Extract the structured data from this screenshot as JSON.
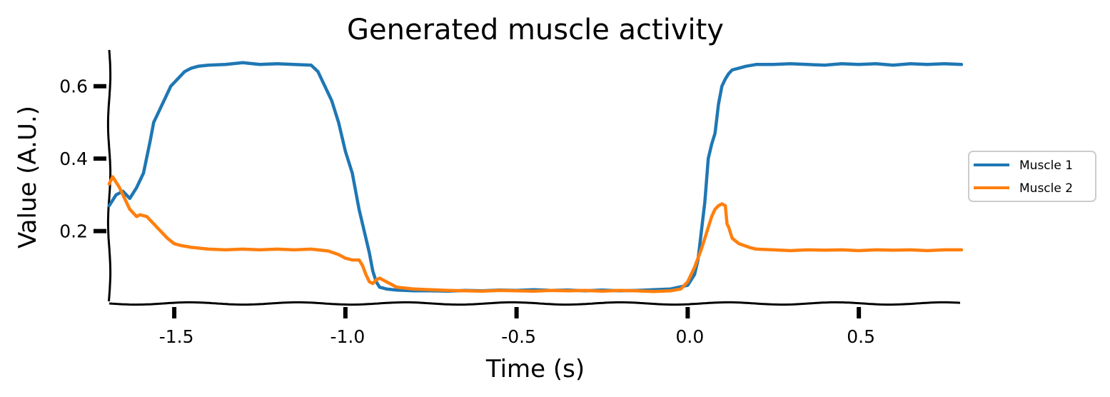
{
  "chart_data": {
    "type": "line",
    "title": "Generated muscle activity",
    "xlabel": "Time (s)",
    "ylabel": "Value (A.U.)",
    "xlim": [
      -1.69,
      0.8
    ],
    "ylim": [
      0.0,
      0.7
    ],
    "xticks": [
      {
        "value": -1.5,
        "label": "-1.5"
      },
      {
        "value": -1.0,
        "label": "-1.0"
      },
      {
        "value": -0.5,
        "label": "-0.5"
      },
      {
        "value": 0.0,
        "label": "0.0"
      },
      {
        "value": 0.5,
        "label": "0.5"
      }
    ],
    "yticks": [
      {
        "value": 0.2,
        "label": "0.2"
      },
      {
        "value": 0.4,
        "label": "0.4"
      },
      {
        "value": 0.6,
        "label": "0.6"
      }
    ],
    "grid": false,
    "legend_position": "right",
    "series": [
      {
        "name": "Muscle 1",
        "color": "#1f77b4",
        "x": [
          -1.69,
          -1.67,
          -1.65,
          -1.63,
          -1.61,
          -1.59,
          -1.57,
          -1.56,
          -1.55,
          -1.53,
          -1.51,
          -1.49,
          -1.47,
          -1.45,
          -1.43,
          -1.4,
          -1.35,
          -1.3,
          -1.25,
          -1.2,
          -1.15,
          -1.1,
          -1.08,
          -1.06,
          -1.04,
          -1.02,
          -1.0,
          -0.98,
          -0.96,
          -0.94,
          -0.93,
          -0.92,
          -0.91,
          -0.9,
          -0.88,
          -0.85,
          -0.8,
          -0.75,
          -0.7,
          -0.65,
          -0.6,
          -0.55,
          -0.5,
          -0.45,
          -0.4,
          -0.35,
          -0.3,
          -0.25,
          -0.2,
          -0.15,
          -0.1,
          -0.05,
          0.0,
          0.02,
          0.03,
          0.04,
          0.05,
          0.06,
          0.07,
          0.08,
          0.09,
          0.1,
          0.11,
          0.12,
          0.13,
          0.15,
          0.17,
          0.2,
          0.25,
          0.3,
          0.35,
          0.4,
          0.45,
          0.5,
          0.55,
          0.6,
          0.65,
          0.7,
          0.75,
          0.8
        ],
        "values": [
          0.27,
          0.3,
          0.31,
          0.29,
          0.32,
          0.36,
          0.45,
          0.5,
          0.52,
          0.56,
          0.6,
          0.62,
          0.64,
          0.65,
          0.655,
          0.658,
          0.66,
          0.665,
          0.66,
          0.662,
          0.66,
          0.658,
          0.64,
          0.6,
          0.56,
          0.5,
          0.42,
          0.36,
          0.26,
          0.18,
          0.14,
          0.09,
          0.06,
          0.045,
          0.04,
          0.037,
          0.035,
          0.035,
          0.034,
          0.036,
          0.035,
          0.037,
          0.036,
          0.038,
          0.036,
          0.037,
          0.035,
          0.037,
          0.035,
          0.036,
          0.038,
          0.04,
          0.05,
          0.08,
          0.12,
          0.2,
          0.28,
          0.4,
          0.44,
          0.47,
          0.55,
          0.6,
          0.62,
          0.635,
          0.645,
          0.65,
          0.655,
          0.66,
          0.66,
          0.662,
          0.66,
          0.658,
          0.662,
          0.66,
          0.662,
          0.658,
          0.662,
          0.66,
          0.662,
          0.66
        ]
      },
      {
        "name": "Muscle 2",
        "color": "#ff7f0e",
        "x": [
          -1.69,
          -1.68,
          -1.66,
          -1.65,
          -1.63,
          -1.61,
          -1.6,
          -1.58,
          -1.56,
          -1.54,
          -1.52,
          -1.5,
          -1.48,
          -1.45,
          -1.4,
          -1.35,
          -1.3,
          -1.25,
          -1.2,
          -1.15,
          -1.1,
          -1.05,
          -1.02,
          -1.0,
          -0.98,
          -0.96,
          -0.95,
          -0.94,
          -0.93,
          -0.92,
          -0.91,
          -0.9,
          -0.88,
          -0.85,
          -0.8,
          -0.75,
          -0.7,
          -0.65,
          -0.6,
          -0.55,
          -0.5,
          -0.45,
          -0.4,
          -0.35,
          -0.3,
          -0.25,
          -0.2,
          -0.15,
          -0.1,
          -0.05,
          -0.02,
          0.0,
          0.02,
          0.04,
          0.06,
          0.07,
          0.08,
          0.09,
          0.1,
          0.11,
          0.115,
          0.12,
          0.13,
          0.15,
          0.18,
          0.2,
          0.25,
          0.3,
          0.35,
          0.4,
          0.45,
          0.5,
          0.55,
          0.6,
          0.65,
          0.7,
          0.75,
          0.8
        ],
        "values": [
          0.33,
          0.35,
          0.32,
          0.3,
          0.26,
          0.24,
          0.245,
          0.24,
          0.22,
          0.2,
          0.18,
          0.165,
          0.16,
          0.155,
          0.15,
          0.148,
          0.15,
          0.148,
          0.15,
          0.148,
          0.15,
          0.145,
          0.135,
          0.125,
          0.12,
          0.12,
          0.105,
          0.08,
          0.06,
          0.055,
          0.065,
          0.07,
          0.06,
          0.045,
          0.04,
          0.038,
          0.036,
          0.035,
          0.034,
          0.036,
          0.035,
          0.034,
          0.036,
          0.035,
          0.036,
          0.034,
          0.036,
          0.035,
          0.033,
          0.035,
          0.04,
          0.06,
          0.1,
          0.15,
          0.21,
          0.24,
          0.26,
          0.27,
          0.275,
          0.27,
          0.22,
          0.21,
          0.18,
          0.165,
          0.155,
          0.15,
          0.148,
          0.146,
          0.148,
          0.147,
          0.148,
          0.146,
          0.148,
          0.147,
          0.148,
          0.146,
          0.148,
          0.148
        ]
      }
    ]
  }
}
